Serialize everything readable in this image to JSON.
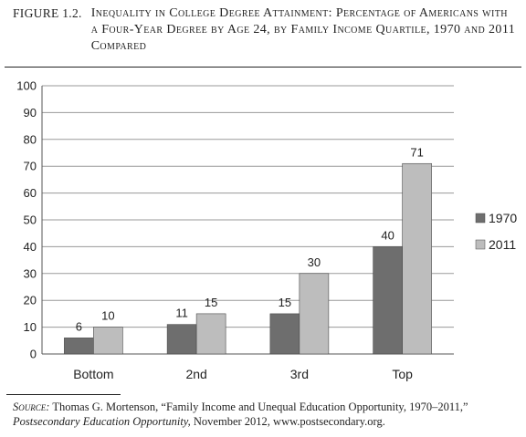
{
  "figure": {
    "number": "FIGURE 1.2.",
    "title": "Inequality in College Degree Attainment: Percentage of Americans with a Four-Year Degree by Age 24, by Family Income Quartile, 1970 and 2011 Compared"
  },
  "source": {
    "label": "Source:",
    "text": " Thomas G. Mortenson, “Family Income and Unequal Education Opportunity, 1970–2011,” ",
    "publication": "Postsecondary Education Opportunity,",
    "rest": " November 2012, www.postsecondary.org."
  },
  "chart_data": {
    "type": "bar",
    "categories": [
      "Bottom",
      "2nd",
      "3rd",
      "Top"
    ],
    "series": [
      {
        "name": "1970",
        "values": [
          6,
          11,
          15,
          40
        ],
        "color": "#6e6e6e"
      },
      {
        "name": "2011",
        "values": [
          10,
          15,
          30,
          71
        ],
        "color": "#bdbdbd"
      }
    ],
    "data_labels": [
      [
        "6",
        "11",
        "15",
        "40"
      ],
      [
        "10",
        "15",
        "30",
        "71"
      ]
    ],
    "ylim": [
      0,
      100
    ],
    "yticks": [
      "0",
      "10",
      "20",
      "30",
      "40",
      "50",
      "60",
      "70",
      "80",
      "90",
      "100"
    ],
    "grid": true,
    "legend": "right"
  }
}
